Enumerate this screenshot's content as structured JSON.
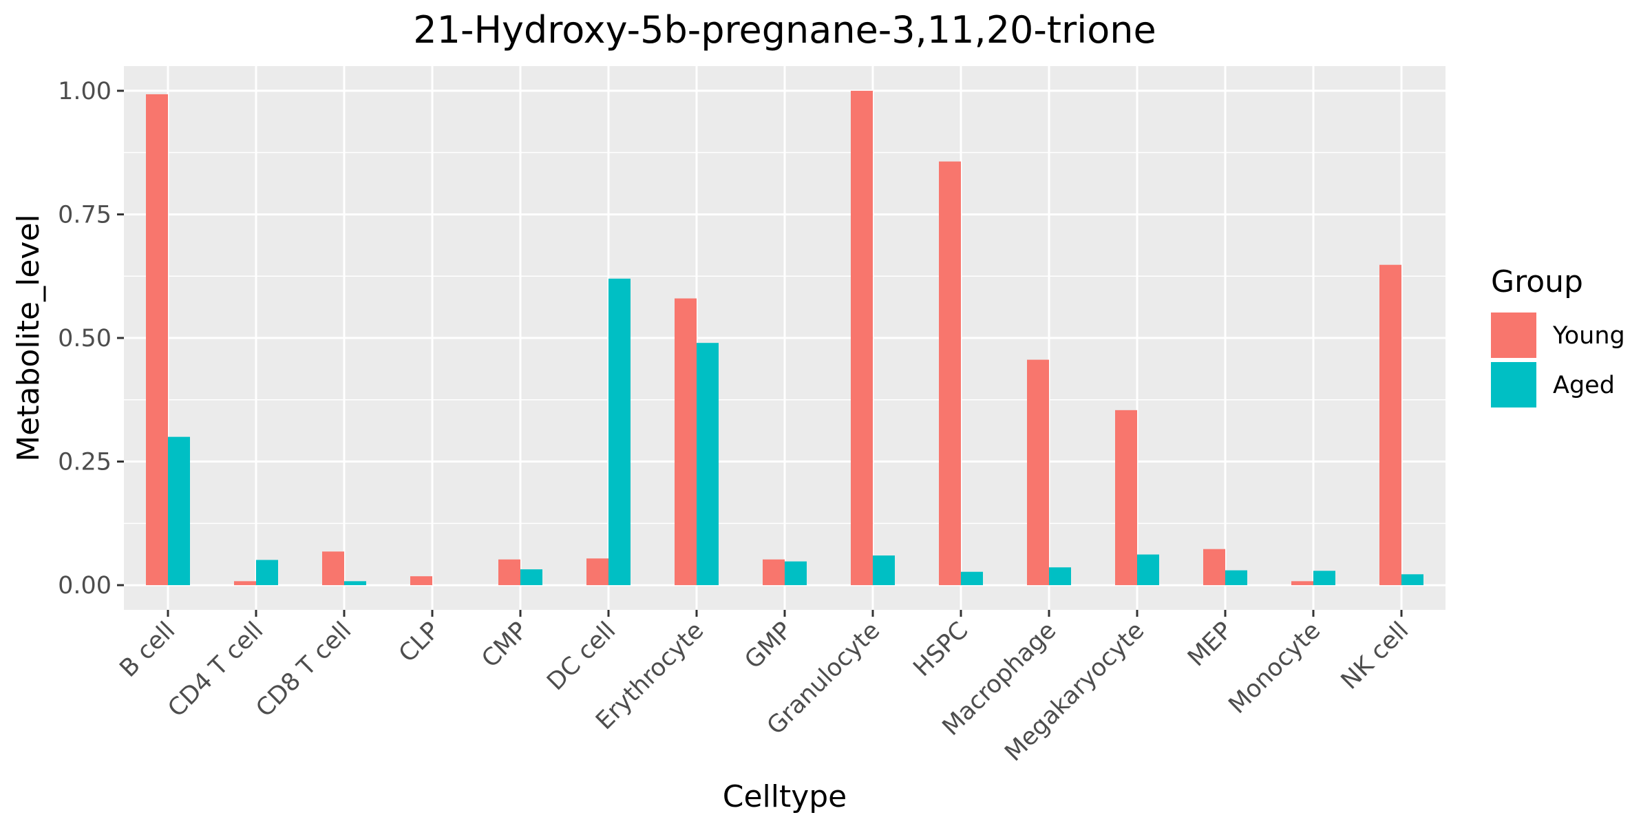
{
  "chart_data": {
    "type": "bar",
    "title": "21-Hydroxy-5b-pregnane-3,11,20-trione",
    "xlabel": "Celltype",
    "ylabel": "Metabolite_level",
    "ylim": [
      -0.05,
      1.05
    ],
    "yticks": [
      0.0,
      0.25,
      0.5,
      0.75,
      1.0
    ],
    "ytick_labels": [
      "0.00",
      "0.25",
      "0.50",
      "0.75",
      "1.00"
    ],
    "grid": true,
    "legend": {
      "title": "Group",
      "position": "right"
    },
    "categories": [
      "B cell",
      "CD4 T cell",
      "CD8 T cell",
      "CLP",
      "CMP",
      "DC cell",
      "Erythrocyte",
      "GMP",
      "Granulocyte",
      "HSPC",
      "Macrophage",
      "Megakaryocyte",
      "MEP",
      "Monocyte",
      "NK cell"
    ],
    "series": [
      {
        "name": "Young",
        "color": "#F8766D",
        "values": [
          0.993,
          0.008,
          0.068,
          0.018,
          0.052,
          0.054,
          0.58,
          0.052,
          1.0,
          0.857,
          0.456,
          0.354,
          0.073,
          0.008,
          0.648
        ]
      },
      {
        "name": "Aged",
        "color": "#00BFC4",
        "values": [
          0.3,
          0.051,
          0.008,
          0.0,
          0.032,
          0.62,
          0.49,
          0.048,
          0.06,
          0.027,
          0.036,
          0.062,
          0.03,
          0.029,
          0.022
        ]
      }
    ]
  }
}
